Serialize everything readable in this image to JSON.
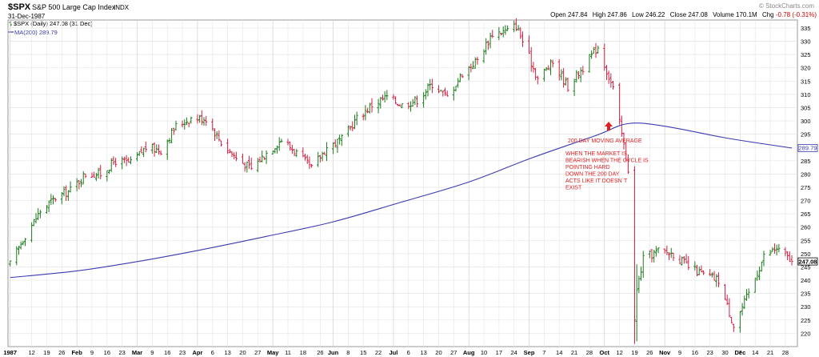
{
  "header": {
    "symbol": "$SPX",
    "name": "S&P 500 Large Cap Index",
    "exchange": "INDX",
    "date": "31-Dec-1987",
    "watermark": "© StockCharts.com",
    "legend_price": "$SPX (Daily) 247.08 (31 Dec)",
    "legend_ma": "MA(200) 289.79",
    "quote": {
      "open_label": "Open",
      "open": "247.84",
      "high_label": "High",
      "high": "247.86",
      "low_label": "Low",
      "low": "246.22",
      "close_label": "Close",
      "close": "247.08",
      "volume_label": "Volume",
      "volume": "170.1M",
      "chg_label": "Chg",
      "chg": "-0.78 (-0.31%)",
      "chg_color": "#cc0000"
    }
  },
  "annotation": {
    "headline": "200 DAY MOVING AVERAGE",
    "lines": [
      "WHEN THE MARKET IS",
      "BEARISH WHEN THE CYCLE IS",
      "POINTING HARD",
      "DOWN THE 200 DAY",
      "ACTS LIKE IT DOESN`T",
      "EXIST"
    ],
    "color": "#e02020"
  },
  "chart_data": {
    "type": "ohlc",
    "y_axis_ticks": [
      220,
      225,
      230,
      235,
      240,
      245,
      250,
      255,
      260,
      265,
      270,
      275,
      280,
      285,
      290,
      295,
      300,
      305,
      310,
      315,
      320,
      325,
      330,
      335
    ],
    "ylim": [
      215,
      338
    ],
    "price_label": "247.08",
    "ma_label": "289.79",
    "x_axis_labels": [
      {
        "label": "1987",
        "date": "1987-01-02",
        "bold": true
      },
      {
        "label": "12",
        "date": "1987-01-12"
      },
      {
        "label": "19",
        "date": "1987-01-19"
      },
      {
        "label": "26",
        "date": "1987-01-26"
      },
      {
        "label": "Feb",
        "date": "1987-02-02",
        "bold": true
      },
      {
        "label": "9",
        "date": "1987-02-09"
      },
      {
        "label": "16",
        "date": "1987-02-16"
      },
      {
        "label": "23",
        "date": "1987-02-23"
      },
      {
        "label": "Mar",
        "date": "1987-03-02",
        "bold": true
      },
      {
        "label": "9",
        "date": "1987-03-09"
      },
      {
        "label": "16",
        "date": "1987-03-16"
      },
      {
        "label": "23",
        "date": "1987-03-23"
      },
      {
        "label": "Apr",
        "date": "1987-03-30",
        "bold": true
      },
      {
        "label": "6",
        "date": "1987-04-06"
      },
      {
        "label": "13",
        "date": "1987-04-13"
      },
      {
        "label": "20",
        "date": "1987-04-20"
      },
      {
        "label": "27",
        "date": "1987-04-27"
      },
      {
        "label": "May",
        "date": "1987-05-04",
        "bold": true
      },
      {
        "label": "11",
        "date": "1987-05-11"
      },
      {
        "label": "18",
        "date": "1987-05-18"
      },
      {
        "label": "26",
        "date": "1987-05-26"
      },
      {
        "label": "Jun",
        "date": "1987-06-01",
        "bold": true
      },
      {
        "label": "8",
        "date": "1987-06-08"
      },
      {
        "label": "15",
        "date": "1987-06-15"
      },
      {
        "label": "22",
        "date": "1987-06-22"
      },
      {
        "label": "Jul",
        "date": "1987-06-29",
        "bold": true
      },
      {
        "label": "6",
        "date": "1987-07-06"
      },
      {
        "label": "13",
        "date": "1987-07-13"
      },
      {
        "label": "20",
        "date": "1987-07-20"
      },
      {
        "label": "27",
        "date": "1987-07-27"
      },
      {
        "label": "Aug",
        "date": "1987-08-03",
        "bold": true
      },
      {
        "label": "10",
        "date": "1987-08-10"
      },
      {
        "label": "17",
        "date": "1987-08-17"
      },
      {
        "label": "24",
        "date": "1987-08-24"
      },
      {
        "label": "Sep",
        "date": "1987-08-31",
        "bold": true
      },
      {
        "label": "7",
        "date": "1987-09-07"
      },
      {
        "label": "14",
        "date": "1987-09-14"
      },
      {
        "label": "21",
        "date": "1987-09-21"
      },
      {
        "label": "28",
        "date": "1987-09-28"
      },
      {
        "label": "Oct",
        "date": "1987-10-05",
        "bold": true
      },
      {
        "label": "12",
        "date": "1987-10-12"
      },
      {
        "label": "19",
        "date": "1987-10-19"
      },
      {
        "label": "26",
        "date": "1987-10-26"
      },
      {
        "label": "Nov",
        "date": "1987-11-02",
        "bold": true
      },
      {
        "label": "9",
        "date": "1987-11-09"
      },
      {
        "label": "16",
        "date": "1987-11-16"
      },
      {
        "label": "23",
        "date": "1987-11-23"
      },
      {
        "label": "30",
        "date": "1987-11-30"
      },
      {
        "label": "Dec",
        "date": "1987-12-07",
        "bold": true
      },
      {
        "label": "7",
        "date": "1987-12-07"
      },
      {
        "label": "14",
        "date": "1987-12-14"
      },
      {
        "label": "21",
        "date": "1987-12-21"
      },
      {
        "label": "28",
        "date": "1987-12-28"
      }
    ],
    "price_series": {
      "name": "$SPX (Daily)",
      "up_color": "#1a7a1a",
      "down_color": "#d02040",
      "close_points": [
        [
          "1987-01-02",
          246
        ],
        [
          "1987-01-09",
          257
        ],
        [
          "1987-01-16",
          266
        ],
        [
          "1987-01-23",
          271
        ],
        [
          "1987-01-30",
          274
        ],
        [
          "1987-02-06",
          280
        ],
        [
          "1987-02-13",
          280
        ],
        [
          "1987-02-20",
          285
        ],
        [
          "1987-02-27",
          284
        ],
        [
          "1987-03-06",
          290
        ],
        [
          "1987-03-13",
          289
        ],
        [
          "1987-03-20",
          298
        ],
        [
          "1987-03-27",
          301
        ],
        [
          "1987-04-03",
          301
        ],
        [
          "1987-04-10",
          292
        ],
        [
          "1987-04-17",
          286
        ],
        [
          "1987-04-24",
          282
        ],
        [
          "1987-05-01",
          288
        ],
        [
          "1987-05-08",
          293
        ],
        [
          "1987-05-15",
          288
        ],
        [
          "1987-05-22",
          282
        ],
        [
          "1987-05-29",
          290
        ],
        [
          "1987-06-05",
          293
        ],
        [
          "1987-06-12",
          301
        ],
        [
          "1987-06-19",
          306
        ],
        [
          "1987-06-26",
          309
        ],
        [
          "1987-07-03",
          306
        ],
        [
          "1987-07-10",
          308
        ],
        [
          "1987-07-17",
          314
        ],
        [
          "1987-07-24",
          309
        ],
        [
          "1987-07-31",
          318
        ],
        [
          "1987-08-07",
          323
        ],
        [
          "1987-08-14",
          333
        ],
        [
          "1987-08-21",
          334
        ],
        [
          "1987-08-25",
          336
        ],
        [
          "1987-09-04",
          316
        ],
        [
          "1987-09-11",
          322
        ],
        [
          "1987-09-18",
          313
        ],
        [
          "1987-09-25",
          320
        ],
        [
          "1987-10-02",
          328
        ],
        [
          "1987-10-09",
          312
        ],
        [
          "1987-10-16",
          282
        ],
        [
          "1987-10-19",
          225
        ],
        [
          "1987-10-20",
          236
        ],
        [
          "1987-10-23",
          248
        ],
        [
          "1987-10-30",
          251
        ],
        [
          "1987-11-06",
          250
        ],
        [
          "1987-11-13",
          245
        ],
        [
          "1987-11-20",
          242
        ],
        [
          "1987-11-27",
          240
        ],
        [
          "1987-12-04",
          223
        ],
        [
          "1987-12-11",
          235
        ],
        [
          "1987-12-18",
          249
        ],
        [
          "1987-12-24",
          252
        ],
        [
          "1987-12-31",
          247.08
        ]
      ]
    },
    "ma_series": {
      "name": "MA(200)",
      "color": "#3a3ab0",
      "points": [
        [
          "1987-01-02",
          241
        ],
        [
          "1987-02-02",
          243.5
        ],
        [
          "1987-03-02",
          247
        ],
        [
          "1987-04-01",
          251.5
        ],
        [
          "1987-05-01",
          256.5
        ],
        [
          "1987-06-01",
          262
        ],
        [
          "1987-07-01",
          269
        ],
        [
          "1987-08-03",
          277
        ],
        [
          "1987-09-01",
          286
        ],
        [
          "1987-10-01",
          294.5
        ],
        [
          "1987-10-16",
          299
        ],
        [
          "1987-11-02",
          298
        ],
        [
          "1987-12-01",
          293.5
        ],
        [
          "1987-12-31",
          289.79
        ]
      ]
    }
  }
}
